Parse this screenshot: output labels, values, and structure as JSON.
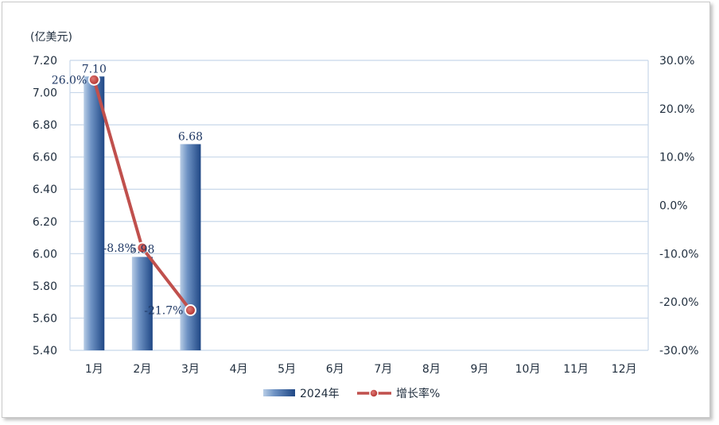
{
  "chart_data": {
    "type": "bar",
    "unit_label": "(亿美元)",
    "categories": [
      "1月",
      "2月",
      "3月",
      "4月",
      "5月",
      "6月",
      "7月",
      "8月",
      "9月",
      "10月",
      "11月",
      "12月"
    ],
    "series": [
      {
        "name": "2024年",
        "type": "bar",
        "axis": "left",
        "values": [
          7.1,
          5.98,
          6.68,
          null,
          null,
          null,
          null,
          null,
          null,
          null,
          null,
          null
        ],
        "labels": [
          "7.10",
          "5.98",
          "6.68"
        ],
        "color": "#2e5a9c"
      },
      {
        "name": "增长率%",
        "type": "line",
        "axis": "right",
        "values": [
          26.0,
          -8.8,
          -21.7,
          null,
          null,
          null,
          null,
          null,
          null,
          null,
          null,
          null
        ],
        "labels": [
          "26.0%",
          "-8.8%",
          "-21.7%"
        ],
        "color": "#c0504d"
      }
    ],
    "y_left": {
      "min": 5.4,
      "max": 7.2,
      "ticks": [
        "5.40",
        "5.60",
        "5.80",
        "6.00",
        "6.20",
        "6.40",
        "6.60",
        "6.80",
        "7.00",
        "7.20"
      ]
    },
    "y_right": {
      "min": -30,
      "max": 30,
      "ticks": [
        "-30.0%",
        "-20.0%",
        "-10.0%",
        "0.0%",
        "10.0%",
        "20.0%",
        "30.0%"
      ]
    },
    "grid": true,
    "legend_position": "bottom"
  }
}
